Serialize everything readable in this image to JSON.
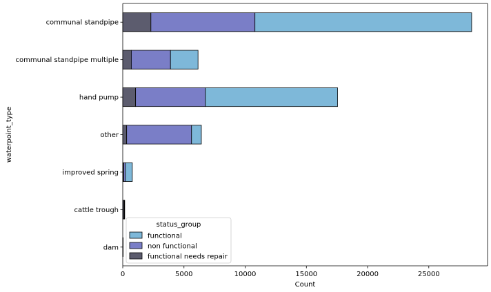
{
  "chart_data": {
    "type": "bar",
    "orientation": "horizontal",
    "stacked": true,
    "xlabel": "Count",
    "ylabel": "waterpoint_type",
    "xlim": [
      0,
      29800
    ],
    "xticks": [
      0,
      5000,
      10000,
      15000,
      20000,
      25000
    ],
    "categories": [
      "communal standpipe",
      "communal standpipe multiple",
      "hand pump",
      "other",
      "improved spring",
      "cattle trough",
      "dam"
    ],
    "series": [
      {
        "name": "functional needs repair",
        "color": "#5c5c6e",
        "values": [
          2300,
          700,
          1050,
          320,
          90,
          100,
          0
        ]
      },
      {
        "name": "non functional",
        "color": "#7a7ec7",
        "values": [
          8500,
          3200,
          5700,
          5300,
          130,
          30,
          3
        ]
      },
      {
        "name": "functional",
        "color": "#7eb8d9",
        "values": [
          17700,
          2250,
          10800,
          800,
          560,
          30,
          3
        ]
      }
    ],
    "legend": {
      "title": "status_group",
      "position": "lower-left",
      "entries": [
        "functional",
        "non functional",
        "functional needs repair"
      ]
    },
    "grid": false
  }
}
